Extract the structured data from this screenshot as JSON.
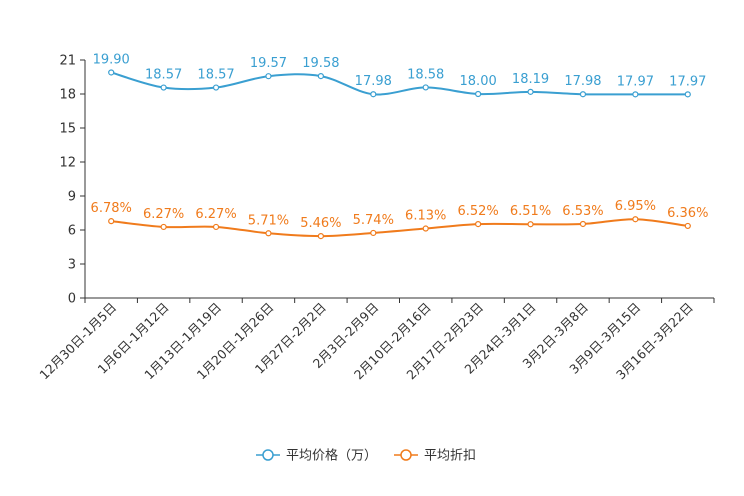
{
  "chart_data": {
    "type": "line",
    "categories": [
      "12月30日-1月5日",
      "1月6日-1月12日",
      "1月13日-1月19日",
      "1月20日-1月26日",
      "1月27日-2月2日",
      "2月3日-2月9日",
      "2月10日-2月16日",
      "2月17日-2月23日",
      "2月24日-3月1日",
      "3月2日-3月8日",
      "3月9日-3月15日",
      "3月16日-3月22日"
    ],
    "ylim": [
      0,
      21
    ],
    "yticks": [
      0,
      3,
      6,
      9,
      12,
      15,
      18,
      21
    ],
    "series": [
      {
        "name": "平均价格（万）",
        "color": "#3a9fd1",
        "values": [
          19.9,
          18.57,
          18.57,
          19.57,
          19.58,
          17.98,
          18.58,
          18.0,
          18.19,
          17.98,
          17.97,
          17.97
        ],
        "labels": [
          "19.90",
          "18.57",
          "18.57",
          "19.57",
          "19.58",
          "17.98",
          "18.58",
          "18.00",
          "18.19",
          "17.98",
          "17.97",
          "17.97"
        ]
      },
      {
        "name": "平均折扣",
        "color": "#f07b1c",
        "values": [
          6.78,
          6.27,
          6.27,
          5.71,
          5.46,
          5.74,
          6.13,
          6.52,
          6.51,
          6.53,
          6.95,
          6.36
        ],
        "labels": [
          "6.78%",
          "6.27%",
          "6.27%",
          "5.71%",
          "5.46%",
          "5.74%",
          "6.13%",
          "6.52%",
          "6.51%",
          "6.53%",
          "6.95%",
          "6.36%"
        ]
      }
    ],
    "legend_position": "bottom-center",
    "grid": false
  }
}
